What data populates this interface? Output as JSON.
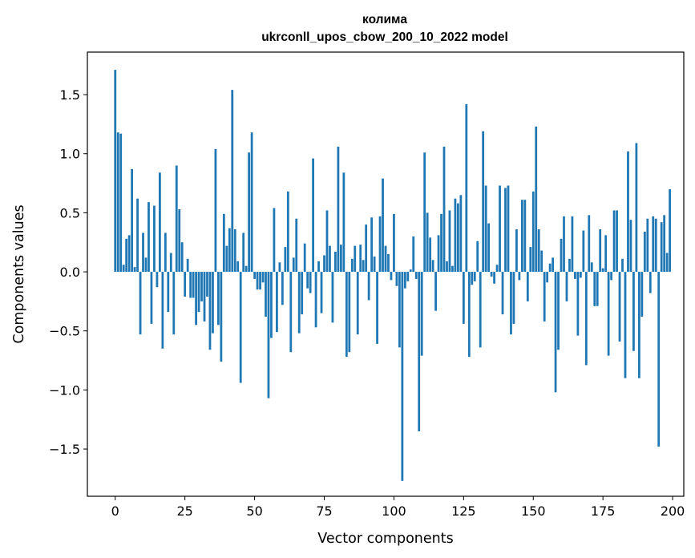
{
  "chart_data": {
    "type": "bar",
    "title": "колима",
    "subtitle": "ukrconll_upos_cbow_200_10_2022 model",
    "xlabel": "Vector components",
    "ylabel": "Components values",
    "xlim": [
      -10,
      204
    ],
    "ylim": [
      -1.9,
      1.86
    ],
    "xticks": [
      0,
      25,
      50,
      75,
      100,
      125,
      150,
      175,
      200
    ],
    "xtick_labels": [
      "0",
      "25",
      "50",
      "75",
      "100",
      "125",
      "150",
      "175",
      "200"
    ],
    "yticks": [
      -1.5,
      -1.0,
      -0.5,
      0.0,
      0.5,
      1.0,
      1.5
    ],
    "ytick_labels": [
      "−1.5",
      "−1.0",
      "−0.5",
      "0.0",
      "0.5",
      "1.0",
      "1.5"
    ],
    "grid": false,
    "bar_color": "#1f77b4",
    "x": [
      0,
      1,
      2,
      3,
      4,
      5,
      6,
      7,
      8,
      9,
      10,
      11,
      12,
      13,
      14,
      15,
      16,
      17,
      18,
      19,
      20,
      21,
      22,
      23,
      24,
      25,
      26,
      27,
      28,
      29,
      30,
      31,
      32,
      33,
      34,
      35,
      36,
      37,
      38,
      39,
      40,
      41,
      42,
      43,
      44,
      45,
      46,
      47,
      48,
      49,
      50,
      51,
      52,
      53,
      54,
      55,
      56,
      57,
      58,
      59,
      60,
      61,
      62,
      63,
      64,
      65,
      66,
      67,
      68,
      69,
      70,
      71,
      72,
      73,
      74,
      75,
      76,
      77,
      78,
      79,
      80,
      81,
      82,
      83,
      84,
      85,
      86,
      87,
      88,
      89,
      90,
      91,
      92,
      93,
      94,
      95,
      96,
      97,
      98,
      99,
      100,
      101,
      102,
      103,
      104,
      105,
      106,
      107,
      108,
      109,
      110,
      111,
      112,
      113,
      114,
      115,
      116,
      117,
      118,
      119,
      120,
      121,
      122,
      123,
      124,
      125,
      126,
      127,
      128,
      129,
      130,
      131,
      132,
      133,
      134,
      135,
      136,
      137,
      138,
      139,
      140,
      141,
      142,
      143,
      144,
      145,
      146,
      147,
      148,
      149,
      150,
      151,
      152,
      153,
      154,
      155,
      156,
      157,
      158,
      159,
      160,
      161,
      162,
      163,
      164,
      165,
      166,
      167,
      168,
      169,
      170,
      171,
      172,
      173,
      174,
      175,
      176,
      177,
      178,
      179,
      180,
      181,
      182,
      183,
      184,
      185,
      186,
      187,
      188,
      189,
      190,
      191,
      192,
      193,
      194,
      195,
      196,
      197,
      198,
      199
    ],
    "values": [
      1.71,
      1.18,
      1.17,
      0.06,
      0.28,
      0.31,
      0.87,
      0.04,
      0.62,
      -0.53,
      0.33,
      0.12,
      0.59,
      -0.44,
      0.56,
      -0.13,
      0.84,
      -0.65,
      0.33,
      -0.34,
      0.16,
      -0.53,
      0.9,
      0.53,
      0.25,
      -0.21,
      0.11,
      -0.22,
      -0.22,
      -0.45,
      -0.34,
      -0.25,
      -0.42,
      -0.21,
      -0.66,
      -0.52,
      1.04,
      -0.45,
      -0.76,
      0.49,
      0.22,
      0.37,
      1.54,
      0.36,
      0.09,
      -0.94,
      0.33,
      0.05,
      1.01,
      1.18,
      -0.06,
      -0.15,
      -0.15,
      -0.09,
      -0.38,
      -1.07,
      -0.56,
      0.54,
      -0.51,
      0.08,
      -0.28,
      0.21,
      0.68,
      -0.68,
      0.12,
      0.45,
      -0.52,
      -0.36,
      0.24,
      -0.14,
      -0.18,
      0.96,
      -0.47,
      0.09,
      -0.35,
      0.14,
      0.52,
      0.22,
      -0.43,
      0.17,
      1.06,
      0.23,
      0.84,
      -0.72,
      -0.68,
      0.11,
      0.22,
      -0.53,
      0.23,
      0.1,
      0.4,
      -0.24,
      0.46,
      0.13,
      -0.61,
      0.47,
      0.79,
      0.22,
      0.15,
      -0.07,
      0.49,
      -0.12,
      -0.64,
      -1.77,
      -0.14,
      -0.08,
      0.02,
      0.3,
      -0.06,
      -1.35,
      -0.71,
      1.01,
      0.5,
      0.29,
      0.1,
      -0.33,
      0.31,
      0.49,
      1.06,
      0.09,
      0.52,
      0.05,
      0.62,
      0.58,
      0.65,
      -0.44,
      1.42,
      -0.72,
      -0.11,
      -0.08,
      0.26,
      -0.64,
      1.19,
      0.73,
      0.41,
      -0.04,
      -0.1,
      0.06,
      0.73,
      -0.36,
      0.71,
      0.73,
      -0.53,
      -0.44,
      0.36,
      -0.07,
      0.61,
      0.61,
      -0.25,
      0.21,
      0.68,
      1.23,
      0.36,
      0.18,
      -0.42,
      -0.09,
      0.07,
      0.12,
      -1.02,
      -0.66,
      0.28,
      0.47,
      -0.25,
      0.11,
      0.47,
      -0.06,
      -0.54,
      -0.05,
      0.35,
      -0.79,
      0.48,
      0.08,
      -0.29,
      -0.29,
      0.36,
      0.03,
      0.31,
      -0.71,
      -0.07,
      0.52,
      0.52,
      -0.59,
      0.11,
      -0.9,
      1.02,
      0.44,
      -0.67,
      1.09,
      -0.9,
      -0.38,
      0.34,
      0.45,
      -0.18,
      0.47,
      0.45,
      -1.48,
      0.42,
      0.48,
      0.16,
      0.7
    ]
  }
}
